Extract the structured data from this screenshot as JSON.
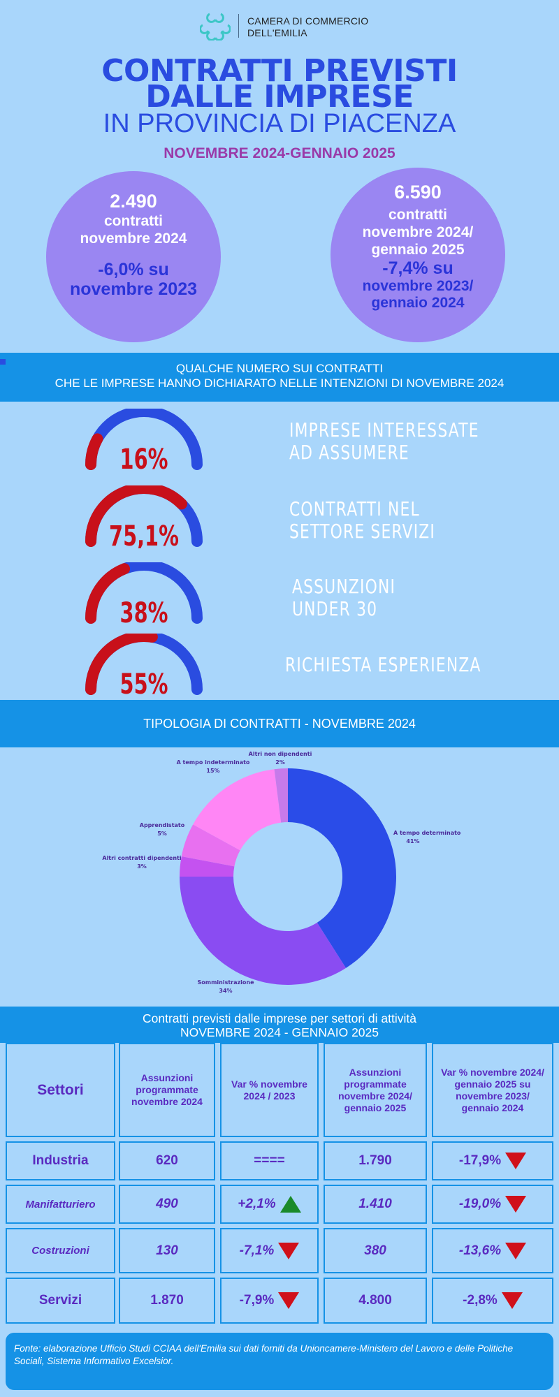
{
  "header": {
    "org_line1": "CAMERA DI COMMERCIO",
    "org_line2": "DELL'EMILIA",
    "title_line1": "CONTRATTI PREVISTI",
    "title_line2": "DALLE IMPRESE",
    "title_line3": "IN PROVINCIA DI PIACENZA",
    "period": "NOVEMBRE 2024-GENNAIO 2025"
  },
  "circles": [
    {
      "number": "2.490",
      "text1": "contratti",
      "text2": "novembre 2024",
      "text3": "",
      "var1": "-6,0% su",
      "var2": "novembre 2023",
      "var3": ""
    },
    {
      "number": "6.590",
      "text1": "contratti",
      "text2": "novembre 2024/",
      "text3": "gennaio 2025",
      "var1": "-7,4% su",
      "var2": "novembre 2023/",
      "var3": "gennaio 2024"
    }
  ],
  "band1": {
    "line1": "QUALCHE NUMERO SUI CONTRATTI",
    "line2": "CHE LE IMPRESE HANNO DICHIARATO NELLE INTENZIONI DI  NOVEMBRE 2024"
  },
  "gauges": [
    {
      "value": "16%",
      "fraction": 0.16,
      "label1": "IMPRESE INTERESSATE",
      "label2": "AD ASSUMERE"
    },
    {
      "value": "75,1%",
      "fraction": 0.751,
      "label1": "CONTRATTI NEL",
      "label2": "SETTORE SERVIZI"
    },
    {
      "value": "38%",
      "fraction": 0.38,
      "label1": "ASSUNZIONI",
      "label2": "UNDER 30"
    },
    {
      "value": "55%",
      "fraction": 0.55,
      "label1": "RICHIESTA ESPERIENZA",
      "label2": ""
    }
  ],
  "colors": {
    "gauge_fill": "#c8101a",
    "gauge_track": "#2a4ce0",
    "band": "#1592e6"
  },
  "band2": {
    "title": "TIPOLOGIA DI CONTRATTI - NOVEMBRE 2024"
  },
  "chart_data": {
    "type": "pie",
    "style": "donut",
    "slices": [
      {
        "label": "A tempo determinato",
        "value": 41,
        "pct": "41%",
        "color": "#2a4ce8"
      },
      {
        "label": "Somministrazione",
        "value": 34,
        "pct": "34%",
        "color": "#8a4cf2"
      },
      {
        "label": "Altri contratti dipendenti",
        "value": 3,
        "pct": "3%",
        "color": "#c452f0"
      },
      {
        "label": "Apprendistato",
        "value": 5,
        "pct": "5%",
        "color": "#e870f0"
      },
      {
        "label": "A tempo indeterminato",
        "value": 15,
        "pct": "15%",
        "color": "#ff86f5"
      },
      {
        "label": "Altri non dipendenti",
        "value": 2,
        "pct": "2%",
        "color": "#c77aea"
      }
    ]
  },
  "band3": {
    "line1": "Contratti previsti dalle imprese per settori di attività",
    "line2": "NOVEMBRE 2024 - GENNAIO 2025"
  },
  "table": {
    "headers": [
      "Settori",
      "Assunzioni programmate novembre 2024",
      "Var % novembre 2024 / 2023",
      "Assunzioni programmate novembre 2024/ gennaio 2025",
      "Var % novembre 2024/ gennaio 2025 su novembre 2023/ gennaio 2024"
    ],
    "rows": [
      {
        "sector": "Industria",
        "nov": "620",
        "var_nov": "====",
        "var_nov_trend": "none",
        "period": "1.790",
        "var_period": "-17,9%",
        "var_period_trend": "down",
        "italic": false
      },
      {
        "sector": "Manifatturiero",
        "nov": "490",
        "var_nov": "+2,1%",
        "var_nov_trend": "up",
        "period": "1.410",
        "var_period": "-19,0%",
        "var_period_trend": "down",
        "italic": true
      },
      {
        "sector": "Costruzioni",
        "nov": "130",
        "var_nov": "-7,1%",
        "var_nov_trend": "down",
        "period": "380",
        "var_period": "-13,6%",
        "var_period_trend": "down",
        "italic": true
      },
      {
        "sector": "Servizi",
        "nov": "1.870",
        "var_nov": "-7,9%",
        "var_nov_trend": "down",
        "period": "4.800",
        "var_period": "-2,8%",
        "var_period_trend": "down",
        "italic": false
      }
    ]
  },
  "footer": {
    "text": "Fonte: elaborazione Ufficio Studi CCIAA dell'Emilia sui dati forniti da Unioncamere-Ministero del Lavoro e delle Politiche Sociali, Sistema Informativo Excelsior."
  }
}
